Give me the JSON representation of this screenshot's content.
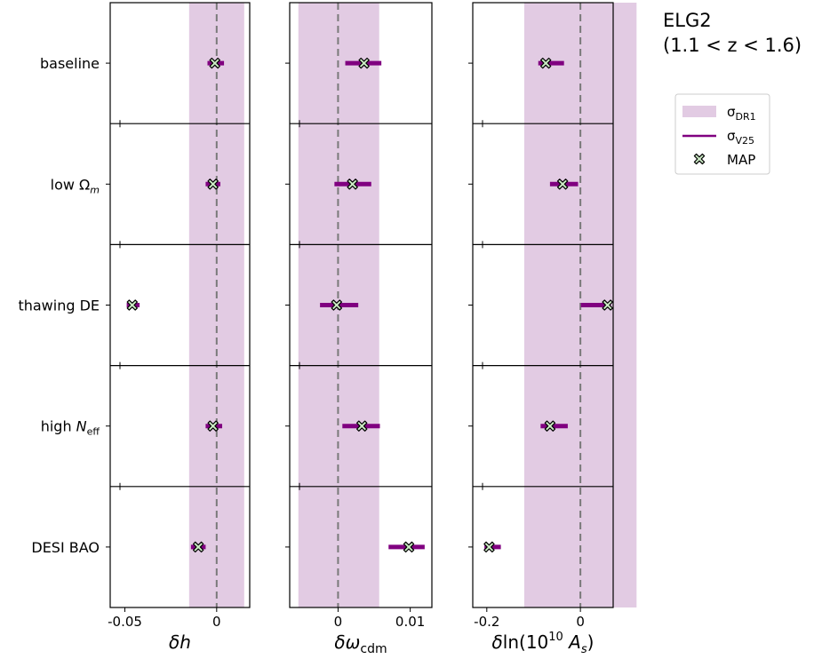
{
  "chart_data": {
    "type": "scatter",
    "title": "ELG2",
    "subtitle": "(1.1 < z < 1.6)",
    "reference_line": 0,
    "rows": [
      "baseline",
      "low Ωm",
      "thawing DE",
      "high Neff",
      "DESI BAO"
    ],
    "legend": {
      "placement": "right",
      "entries": [
        {
          "kind": "band",
          "base": "σ",
          "sub": "DR1"
        },
        {
          "kind": "line",
          "base": "σ",
          "sub": "V25"
        },
        {
          "kind": "marker",
          "base": "MAP",
          "sub": ""
        }
      ]
    },
    "colors": {
      "band": "#e2cbe3",
      "bar": "#800080",
      "marker_fill": "#ccebc5",
      "reference": "#7a7a7a",
      "frame": "#000000"
    },
    "panels": [
      {
        "parameter": "δh",
        "xlim": [
          -0.058,
          0.018
        ],
        "xticks": [
          -0.05,
          0
        ],
        "xtick_labels": [
          "-0.05",
          "0"
        ],
        "band": [
          -0.015,
          0.015
        ],
        "points": [
          {
            "map": -0.001,
            "lo": -0.005,
            "hi": 0.004
          },
          {
            "map": -0.002,
            "lo": -0.006,
            "hi": 0.002
          },
          {
            "map": -0.046,
            "lo": -0.049,
            "hi": -0.042
          },
          {
            "map": -0.002,
            "lo": -0.006,
            "hi": 0.003
          },
          {
            "map": -0.01,
            "lo": -0.014,
            "hi": -0.006
          }
        ]
      },
      {
        "parameter": "δω_cdm",
        "xlim": [
          -0.0067,
          0.013
        ],
        "xticks": [
          0,
          0.01
        ],
        "xtick_labels": [
          "0",
          "0.01"
        ],
        "band": [
          -0.0055,
          0.0057
        ],
        "points": [
          {
            "map": 0.0036,
            "lo": 0.001,
            "hi": 0.006
          },
          {
            "map": 0.002,
            "lo": -0.0005,
            "hi": 0.0046
          },
          {
            "map": -0.0002,
            "lo": -0.0025,
            "hi": 0.0028
          },
          {
            "map": 0.0033,
            "lo": 0.0006,
            "hi": 0.0058
          },
          {
            "map": 0.0098,
            "lo": 0.007,
            "hi": 0.012
          }
        ]
      },
      {
        "parameter": "δln(10^10 A_s)",
        "xlim": [
          -0.23,
          0.07
        ],
        "xticks": [
          -0.2,
          0
        ],
        "xtick_labels": [
          "-0.2",
          "0"
        ],
        "band": [
          -0.12,
          0.12
        ],
        "points": [
          {
            "map": -0.074,
            "lo": -0.09,
            "hi": -0.035
          },
          {
            "map": -0.038,
            "lo": -0.065,
            "hi": -0.005
          },
          {
            "map": 0.058,
            "lo": 0.001,
            "hi": 0.065
          },
          {
            "map": -0.065,
            "lo": -0.085,
            "hi": -0.027
          },
          {
            "map": -0.195,
            "lo": -0.205,
            "hi": -0.17
          }
        ]
      }
    ]
  }
}
